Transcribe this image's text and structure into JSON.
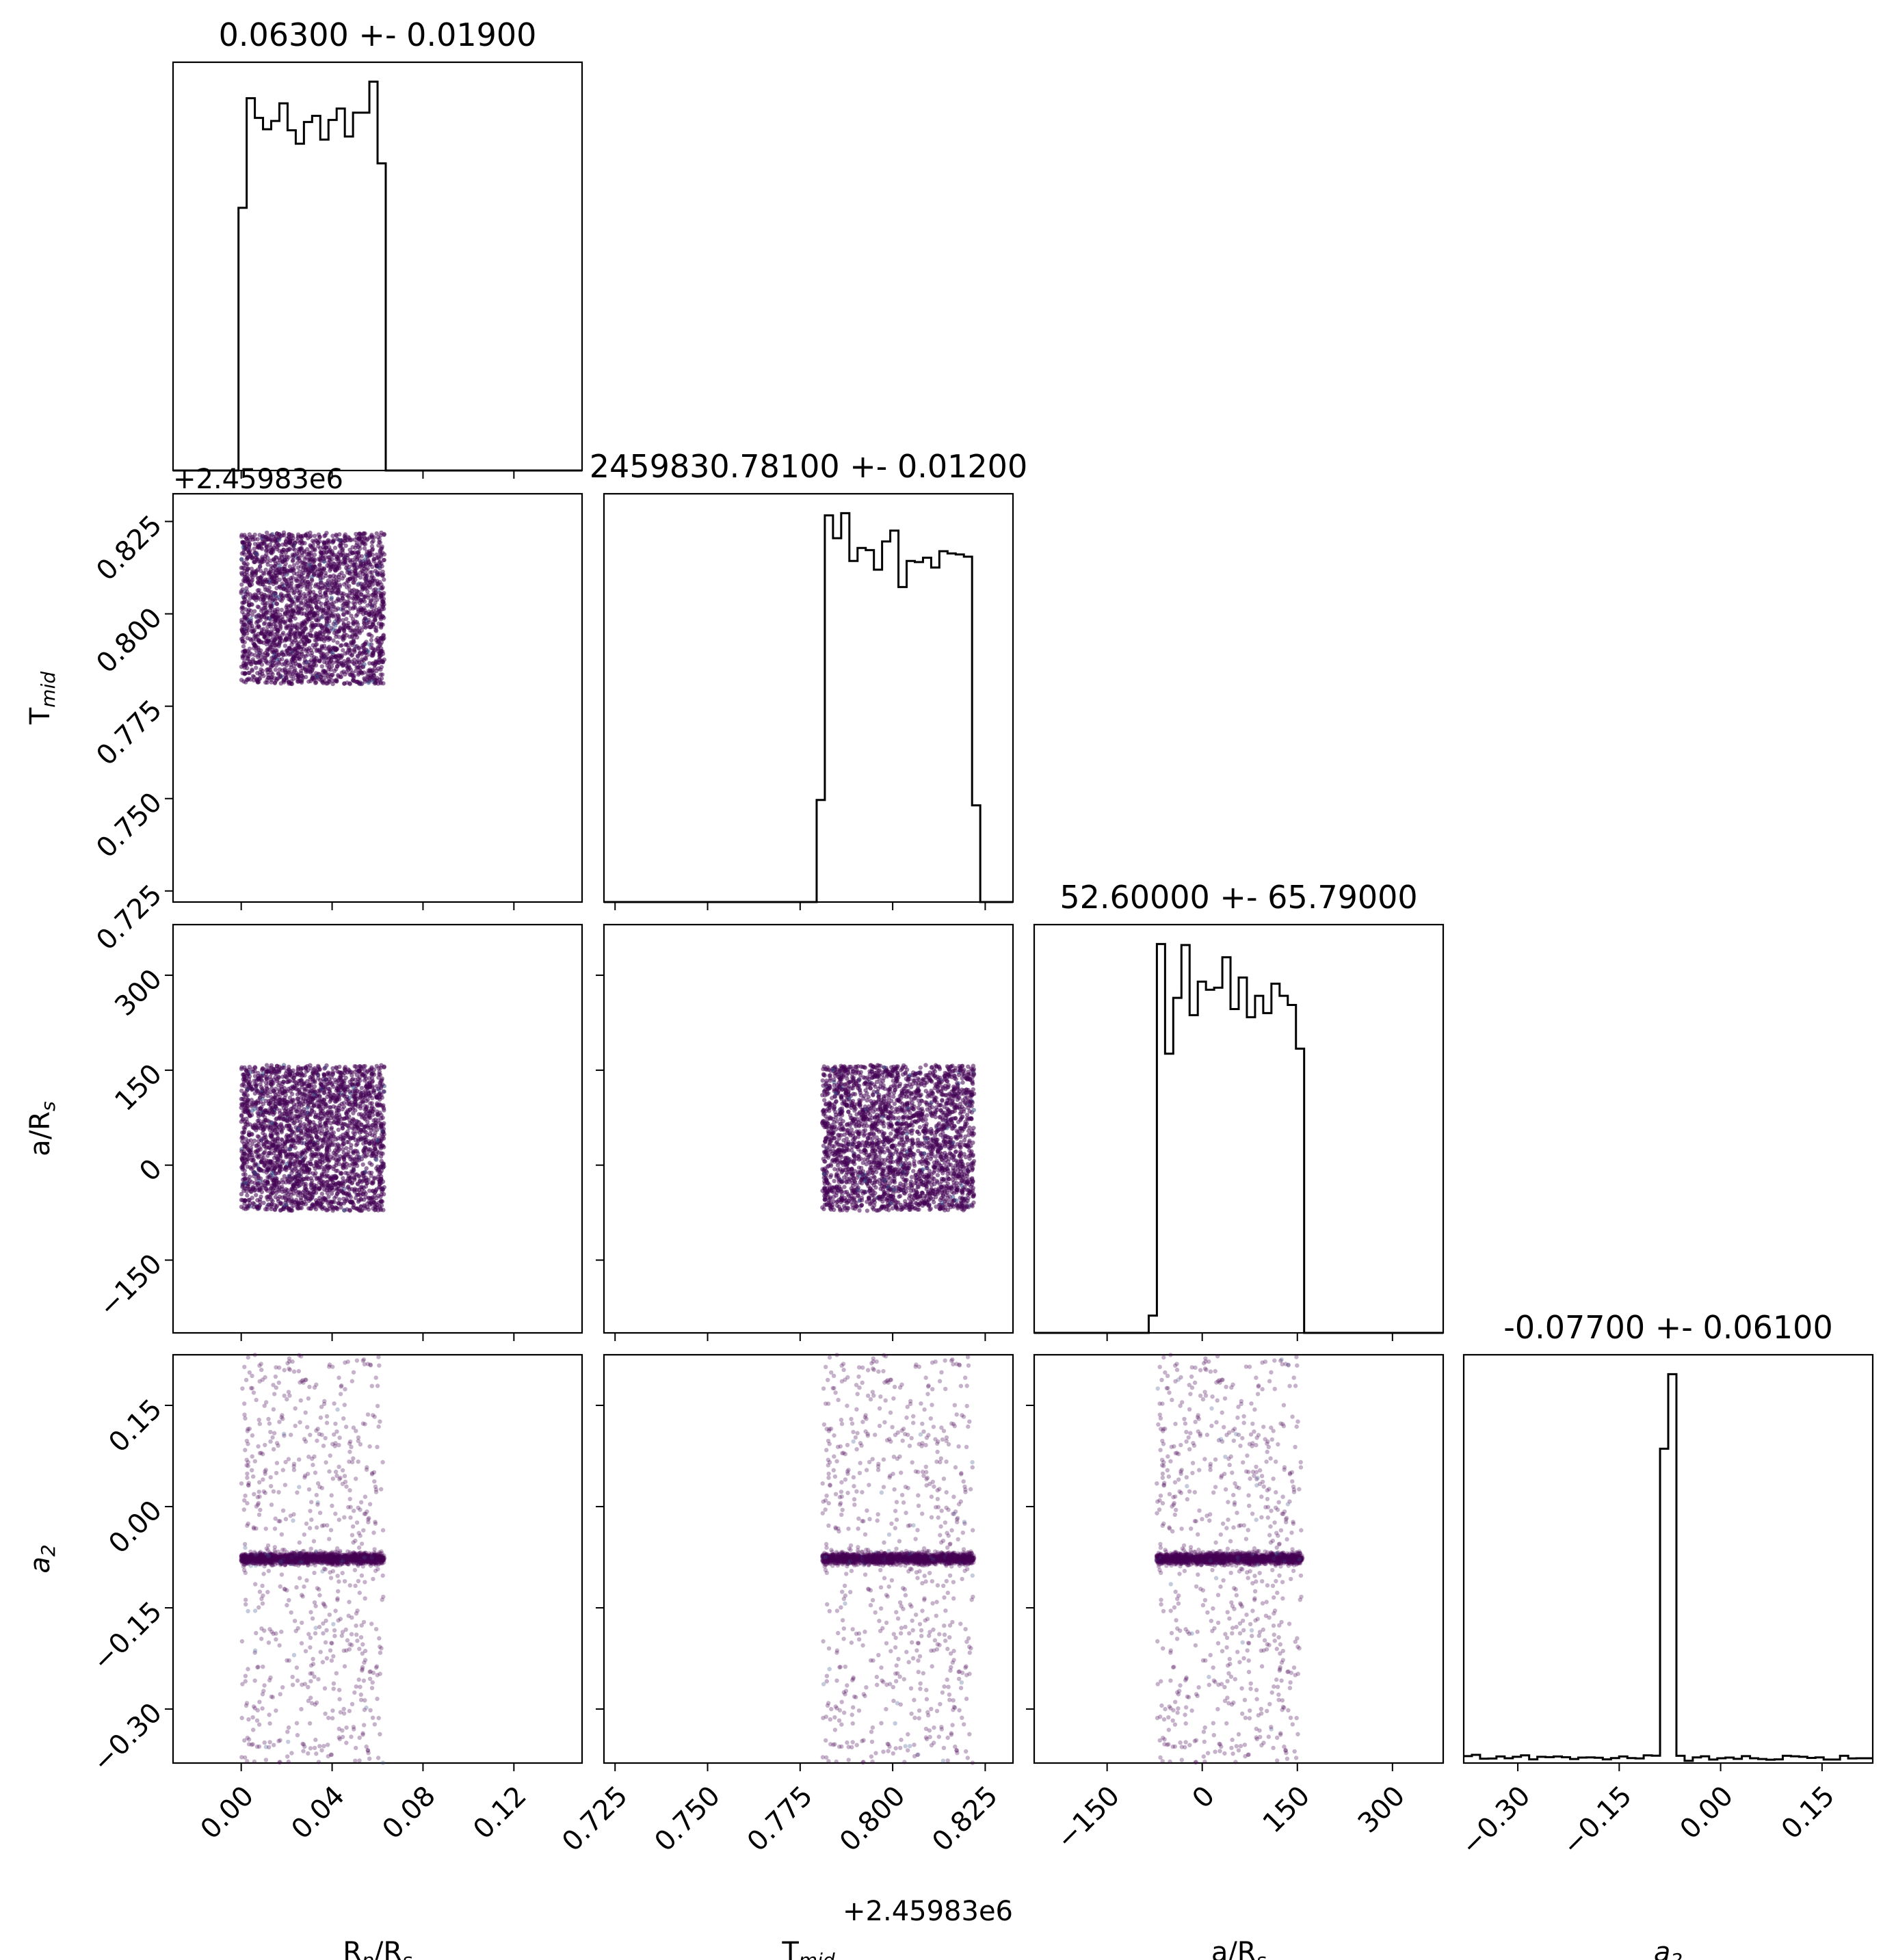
{
  "colors": {
    "hist_line": "#000000",
    "scatter": "#440154",
    "scatter_secondary": "#3b528b"
  },
  "chart_data": {
    "type": "corner",
    "parameters": [
      {
        "key": "rp",
        "label_main": "R",
        "label_sub": "p",
        "label_rest": "/R",
        "label_sub2": "s",
        "range": [
          -0.03,
          0.15
        ],
        "ticks": [
          "0.00",
          "0.04",
          "0.08",
          "0.12"
        ],
        "tick_values": [
          0,
          0.04,
          0.08,
          0.12
        ],
        "title": "0.06300 +- 0.01900",
        "uniform": [
          0.0,
          0.063
        ]
      },
      {
        "key": "tmid",
        "label_main": "T",
        "label_sub": "mid",
        "label_rest": "",
        "label_sub2": "",
        "range": [
          0.722,
          0.8325
        ],
        "ticks": [
          "0.725",
          "0.750",
          "0.775",
          "0.800",
          "0.825"
        ],
        "tick_values": [
          0.725,
          0.75,
          0.775,
          0.8,
          0.825
        ],
        "offset": "+2.45983e6",
        "title": "2459830.78100 +- 0.01200",
        "uniform": [
          0.781,
          0.822
        ]
      },
      {
        "key": "ars",
        "label_main": "a/R",
        "label_sub": "",
        "label_rest": "",
        "label_sub2": "s",
        "range": [
          -265,
          380
        ],
        "ticks": [
          "−150",
          "0",
          "150",
          "300"
        ],
        "tick_values": [
          -150,
          0,
          150,
          300
        ],
        "title": "52.60000 +- 65.79000",
        "uniform": [
          -72,
          158
        ]
      },
      {
        "key": "a2",
        "label_main": "a",
        "label_sub": "2",
        "label_rest": "",
        "label_sub2": "",
        "italic": true,
        "range": [
          -0.38,
          0.225
        ],
        "ticks": [
          "−0.30",
          "−0.15",
          "0.00",
          "0.15"
        ],
        "tick_values": [
          -0.3,
          -0.15,
          0.0,
          0.15
        ],
        "title": "-0.07700 +- 0.06100",
        "center": -0.077,
        "core_sigma": 0.004
      }
    ]
  }
}
